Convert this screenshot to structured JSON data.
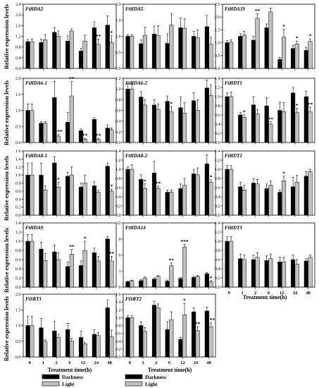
{
  "figure": {
    "ylabel": "Relative expression levels",
    "xlabel": "Treatment time(h)",
    "legend": [
      {
        "name": "Darkness",
        "color": "#000000"
      },
      {
        "name": "Light",
        "color": "#c0c0c0"
      }
    ]
  },
  "chart_data": [
    {
      "type": "bar",
      "title": "FtHDA2",
      "categories": [
        "0",
        "1",
        "2",
        "6",
        "12",
        "24",
        "48"
      ],
      "ylim": [
        0,
        2.4
      ],
      "yticks": [
        "0.0",
        "0.4",
        "0.8",
        "1.2",
        "1.6",
        "2.0",
        "2.4"
      ],
      "series": [
        {
          "name": "Darkness",
          "values": [
            1.0,
            0.97,
            1.35,
            1.02,
            0.65,
            1.52,
            1.62
          ]
        },
        {
          "name": "Light",
          "values": [
            1.0,
            1.07,
            1.2,
            1.4,
            1.02,
            0.9,
            0.97
          ]
        }
      ],
      "errors": [
        [
          0.08,
          0.12,
          0.18,
          0.2,
          0.1,
          0.22,
          0.35
        ],
        [
          0.1,
          0.2,
          0.2,
          0.08,
          0.22,
          0.2,
          0.25
        ]
      ],
      "sig": [
        [
          "",
          "",
          "",
          "",
          "",
          "",
          ""
        ],
        [
          "",
          "",
          "",
          "",
          "",
          "**",
          "*"
        ]
      ]
    },
    {
      "type": "bar",
      "title": "FtHDA5",
      "categories": [
        "0",
        "1",
        "2",
        "6",
        "12",
        "24",
        "48"
      ],
      "ylim": [
        0,
        2.0
      ],
      "yticks": [
        "0.0",
        "0.5",
        "1.0",
        "1.5",
        "2.0"
      ],
      "series": [
        {
          "name": "Darkness",
          "values": [
            1.0,
            0.77,
            1.07,
            0.78,
            1.27,
            1.0,
            1.3
          ]
        },
        {
          "name": "Light",
          "values": [
            1.0,
            1.03,
            1.03,
            1.35,
            1.25,
            0.95,
            0.75
          ]
        }
      ],
      "errors": [
        [
          0.05,
          0.12,
          0.25,
          0.3,
          0.3,
          0.15,
          0.35
        ],
        [
          0.05,
          0.25,
          0.3,
          0.35,
          0.3,
          0.25,
          0.22
        ]
      ],
      "sig": [
        [
          "",
          "",
          "",
          "",
          "",
          "",
          ""
        ],
        [
          "",
          "",
          "",
          "",
          "",
          "",
          ""
        ]
      ]
    },
    {
      "type": "bar",
      "title": "FtHDA19",
      "categories": [
        "0",
        "1",
        "2",
        "6",
        "12",
        "24",
        "48"
      ],
      "ylim": [
        0,
        2.5
      ],
      "yticks": [
        "0.0",
        "0.5",
        "1.0",
        "1.5",
        "2.0",
        "2.5"
      ],
      "series": [
        {
          "name": "Darkness",
          "values": [
            1.0,
            1.25,
            1.1,
            1.58,
            0.35,
            0.78,
            0.7
          ]
        },
        {
          "name": "Light",
          "values": [
            1.02,
            1.3,
            1.95,
            2.2,
            1.22,
            0.95,
            1.05
          ]
        }
      ],
      "errors": [
        [
          0.08,
          0.1,
          0.15,
          0.15,
          0.08,
          0.12,
          0.12
        ],
        [
          0.1,
          0.15,
          0.18,
          0.15,
          0.3,
          0.12,
          0.1
        ]
      ],
      "sig": [
        [
          "",
          "",
          "",
          "",
          "",
          "",
          ""
        ],
        [
          "",
          "",
          "**",
          "",
          "*",
          "*",
          "*"
        ]
      ]
    },
    {
      "type": "bar",
      "title": "FtHDA6-1",
      "categories": [
        "0",
        "1",
        "2",
        "6",
        "12",
        "24",
        "48"
      ],
      "ylim": [
        0,
        2.0
      ],
      "yticks": [
        "0.0",
        "0.5",
        "1.0",
        "1.5",
        "2.0"
      ],
      "series": [
        {
          "name": "Darkness",
          "values": [
            1.0,
            0.6,
            1.4,
            0.63,
            0.37,
            0.72,
            0.45
          ]
        },
        {
          "name": "Light",
          "values": [
            1.0,
            0.6,
            0.2,
            1.45,
            0.1,
            0.1,
            0.4
          ]
        }
      ],
      "errors": [
        [
          0.2,
          0.05,
          0.5,
          0.3,
          0.05,
          0.05,
          0.1
        ],
        [
          0.2,
          0.05,
          0.05,
          0.45,
          0.03,
          0.03,
          0.05
        ]
      ],
      "sig": [
        [
          "",
          "",
          "",
          "",
          "",
          "",
          ""
        ],
        [
          "",
          "",
          "***",
          "**",
          "**",
          "**",
          ""
        ]
      ]
    },
    {
      "type": "bar",
      "title": "FtHDA6-2",
      "categories": [
        "0",
        "1",
        "2",
        "6",
        "12",
        "24",
        "48"
      ],
      "ylim": [
        0,
        1.2
      ],
      "yticks": [
        "0.0",
        "0.2",
        "0.4",
        "0.6",
        "0.8",
        "1.0",
        "1.2"
      ],
      "series": [
        {
          "name": "Darkness",
          "values": [
            1.0,
            0.85,
            0.7,
            0.77,
            0.65,
            0.78,
            1.02
          ]
        },
        {
          "name": "Light",
          "values": [
            1.0,
            0.7,
            0.62,
            0.57,
            0.55,
            0.6,
            0.88
          ]
        }
      ],
      "errors": [
        [
          0.1,
          0.1,
          0.1,
          0.1,
          0.2,
          0.15,
          0.15
        ],
        [
          0.1,
          0.1,
          0.1,
          0.1,
          0.2,
          0.2,
          0.2
        ]
      ],
      "sig": [
        [
          "",
          "",
          "",
          "",
          "",
          "",
          ""
        ],
        [
          "",
          "",
          "",
          "*",
          "",
          "",
          ""
        ]
      ]
    },
    {
      "type": "bar",
      "title": "FtHDT1",
      "categories": [
        "0",
        "1",
        "2",
        "6",
        "12",
        "24",
        "48"
      ],
      "ylim": [
        0,
        1.4
      ],
      "yticks": [
        "0.0",
        "0.2",
        "0.4",
        "0.6",
        "0.8",
        "1.0",
        "1.2",
        "1.4"
      ],
      "series": [
        {
          "name": "Darkness",
          "values": [
            1.0,
            0.6,
            0.82,
            0.8,
            0.7,
            1.08,
            1.0
          ]
        },
        {
          "name": "Light",
          "values": [
            1.0,
            0.55,
            0.62,
            0.4,
            0.67,
            0.65,
            0.67
          ]
        }
      ],
      "errors": [
        [
          0.08,
          0.05,
          0.18,
          0.18,
          0.18,
          0.12,
          0.12
        ],
        [
          0.1,
          0.05,
          0.1,
          0.05,
          0.2,
          0.1,
          0.1
        ]
      ],
      "sig": [
        [
          "",
          "",
          "",
          "",
          "",
          "",
          ""
        ],
        [
          "",
          "*",
          "",
          "**",
          "",
          "*",
          "**"
        ]
      ]
    },
    {
      "type": "bar",
      "title": "FtHDA8-1",
      "categories": [
        "0",
        "1",
        "2",
        "6",
        "12",
        "24",
        "48"
      ],
      "ylim": [
        0,
        1.6
      ],
      "yticks": [
        "0.0",
        "0.2",
        "0.4",
        "0.6",
        "0.8",
        "1.0",
        "1.2",
        "1.4",
        "1.6"
      ],
      "series": [
        {
          "name": "Darkness",
          "values": [
            1.0,
            1.0,
            1.3,
            0.97,
            0.7,
            0.73,
            1.22
          ]
        },
        {
          "name": "Light",
          "values": [
            1.0,
            0.63,
            0.7,
            1.0,
            0.8,
            0.57,
            0.6
          ]
        }
      ],
      "errors": [
        [
          0.3,
          0.3,
          0.15,
          0.1,
          0.1,
          0.1,
          0.08
        ],
        [
          0.3,
          0.1,
          0.12,
          0.2,
          0.2,
          0.05,
          0.05
        ]
      ],
      "sig": [
        [
          "",
          "",
          "",
          "",
          "",
          "",
          ""
        ],
        [
          "",
          "",
          "*",
          "",
          "",
          "",
          "*"
        ]
      ]
    },
    {
      "type": "bar",
      "title": "FtHDA8-2",
      "categories": [
        "0",
        "1",
        "2",
        "6",
        "12",
        "24",
        "48"
      ],
      "ylim": [
        0,
        1.4
      ],
      "yticks": [
        "0.0",
        "0.2",
        "0.4",
        "0.6",
        "0.8",
        "1.0",
        "1.2",
        "1.4"
      ],
      "series": [
        {
          "name": "Darkness",
          "values": [
            1.0,
            0.78,
            0.92,
            0.5,
            0.58,
            0.9,
            1.12
          ]
        },
        {
          "name": "Light",
          "values": [
            1.0,
            0.58,
            0.58,
            0.5,
            0.65,
            0.88,
            0.72
          ]
        }
      ],
      "errors": [
        [
          0.05,
          0.1,
          0.25,
          0.05,
          0.1,
          0.1,
          0.2
        ],
        [
          0.1,
          0.1,
          0.05,
          0.05,
          0.15,
          0.15,
          0.05
        ]
      ],
      "sig": [
        [
          "",
          "",
          "",
          "",
          "",
          "",
          ""
        ],
        [
          "",
          "*",
          "**",
          "",
          "",
          "",
          "*"
        ]
      ]
    },
    {
      "type": "bar",
      "title": "FtHDT2",
      "categories": [
        "0",
        "1",
        "2",
        "6",
        "12",
        "24",
        "48"
      ],
      "ylim": [
        0,
        1.4
      ],
      "yticks": [
        "0.0",
        "0.2",
        "0.4",
        "0.6",
        "0.8",
        "1.0",
        "1.2",
        "1.4"
      ],
      "series": [
        {
          "name": "Darkness",
          "values": [
            1.0,
            0.62,
            0.7,
            0.58,
            0.5,
            0.62,
            0.85
          ]
        },
        {
          "name": "Light",
          "values": [
            1.0,
            0.55,
            0.68,
            0.65,
            0.75,
            0.72,
            0.95
          ]
        }
      ],
      "errors": [
        [
          0.08,
          0.1,
          0.1,
          0.1,
          0.05,
          0.2,
          0.1
        ],
        [
          0.08,
          0.1,
          0.1,
          0.1,
          0.1,
          0.15,
          0.05
        ]
      ],
      "sig": [
        [
          "",
          "",
          "",
          "",
          "",
          "",
          ""
        ],
        [
          "",
          "",
          "",
          "",
          "*",
          "",
          ""
        ]
      ]
    },
    {
      "type": "bar",
      "title": "FtHDA9",
      "categories": [
        "0",
        "1",
        "2",
        "6",
        "12",
        "24",
        "48"
      ],
      "ylim": [
        0,
        1.4
      ],
      "yticks": [
        "0.0",
        "0.2",
        "0.4",
        "0.6",
        "0.8",
        "1.0",
        "1.2",
        "1.4"
      ],
      "series": [
        {
          "name": "Darkness",
          "values": [
            1.0,
            0.83,
            0.77,
            0.45,
            0.47,
            0.75,
            1.05
          ]
        },
        {
          "name": "Light",
          "values": [
            1.0,
            0.58,
            0.6,
            0.72,
            0.8,
            0.57,
            0.57
          ]
        }
      ],
      "errors": [
        [
          0.15,
          0.15,
          0.15,
          0.1,
          0.1,
          0.1,
          0.05
        ],
        [
          0.15,
          0.15,
          0.15,
          0.1,
          0.2,
          0.1,
          0.1
        ]
      ],
      "sig": [
        [
          "",
          "",
          "",
          "",
          "",
          "",
          ""
        ],
        [
          "",
          "",
          "",
          "**",
          "*",
          "",
          "**"
        ]
      ]
    },
    {
      "type": "bar",
      "title": "FtHDA14",
      "categories": [
        "0",
        "1",
        "2",
        "6",
        "12",
        "24",
        "48"
      ],
      "ylim": [
        0,
        12
      ],
      "yticks": [
        "0",
        "3",
        "6",
        "9",
        "12"
      ],
      "series": [
        {
          "name": "Darkness",
          "values": [
            1.0,
            1.2,
            1.5,
            1.1,
            1.6,
            1.8,
            2.5
          ]
        },
        {
          "name": "Light",
          "values": [
            1.2,
            1.7,
            2.0,
            4.0,
            7.5,
            2.0,
            1.0
          ]
        }
      ],
      "errors": [
        [
          0.1,
          0.2,
          0.2,
          0.2,
          0.2,
          0.2,
          0.2
        ],
        [
          0.1,
          0.2,
          0.2,
          0.5,
          0.5,
          0.2,
          0.2
        ]
      ],
      "sig": [
        [
          "",
          "",
          "",
          "",
          "",
          "",
          ""
        ],
        [
          "",
          "",
          "",
          "**",
          "***",
          "",
          "*"
        ]
      ]
    },
    {
      "type": "bar",
      "title": "FtHDT3",
      "categories": [
        "0",
        "1",
        "2",
        "6",
        "12",
        "24",
        "48"
      ],
      "ylim": [
        0,
        1.4
      ],
      "yticks": [
        "0.0",
        "0.2",
        "0.4",
        "0.6",
        "0.8",
        "1.0",
        "1.2",
        "1.4"
      ],
      "series": [
        {
          "name": "Darkness",
          "values": [
            1.0,
            0.62,
            0.6,
            0.58,
            0.55,
            0.6,
            0.57
          ]
        },
        {
          "name": "Light",
          "values": [
            1.0,
            0.6,
            0.65,
            0.62,
            0.55,
            0.5,
            0.65
          ]
        }
      ],
      "errors": [
        [
          0.1,
          0.1,
          0.1,
          0.1,
          0.1,
          0.1,
          0.05
        ],
        [
          0.1,
          0.1,
          0.1,
          0.1,
          0.1,
          0.1,
          0.05
        ]
      ],
      "sig": [
        [
          "",
          "",
          "",
          "",
          "",
          "",
          ""
        ],
        [
          "",
          "",
          "",
          "",
          "",
          "",
          ""
        ]
      ]
    },
    {
      "type": "bar",
      "title": "FtSRT1",
      "categories": [
        "0",
        "1",
        "2",
        "6",
        "12",
        "24",
        "48"
      ],
      "ylim": [
        0,
        2.0
      ],
      "yticks": [
        "0.0",
        "0.5",
        "1.0",
        "1.5",
        "2.0"
      ],
      "series": [
        {
          "name": "Darkness",
          "values": [
            1.0,
            0.93,
            0.83,
            0.87,
            0.62,
            0.72,
            1.57
          ]
        },
        {
          "name": "Light",
          "values": [
            1.0,
            0.5,
            0.62,
            0.5,
            0.42,
            0.68,
            0.65
          ]
        }
      ],
      "errors": [
        [
          0.3,
          0.3,
          0.3,
          0.2,
          0.2,
          0.15,
          0.25
        ],
        [
          0.3,
          0.05,
          0.1,
          0.1,
          0.05,
          0.1,
          0.2
        ]
      ],
      "sig": [
        [
          "",
          "",
          "",
          "",
          "",
          "",
          ""
        ],
        [
          "",
          "",
          "",
          "",
          "",
          "",
          ""
        ]
      ]
    },
    {
      "type": "bar",
      "title": "FtSRT2",
      "categories": [
        "0",
        "1",
        "2",
        "6",
        "12",
        "24",
        "48"
      ],
      "ylim": [
        0,
        1.6
      ],
      "yticks": [
        "0.0",
        "0.2",
        "0.4",
        "0.6",
        "0.8",
        "1.0",
        "1.2",
        "1.4",
        "1.6"
      ],
      "series": [
        {
          "name": "Darkness",
          "values": [
            1.0,
            0.8,
            1.32,
            0.7,
            0.45,
            1.15,
            1.17
          ]
        },
        {
          "name": "Light",
          "values": [
            1.0,
            0.65,
            1.25,
            0.95,
            1.07,
            0.67,
            0.77
          ]
        }
      ],
      "errors": [
        [
          0.05,
          0.1,
          0.1,
          0.2,
          0.05,
          0.1,
          0.1
        ],
        [
          0.05,
          0.1,
          0.1,
          0.2,
          0.3,
          0.1,
          0.1
        ]
      ],
      "sig": [
        [
          "",
          "",
          "",
          "",
          "",
          "",
          ""
        ],
        [
          "",
          "",
          "",
          "",
          "*",
          "**",
          "***"
        ]
      ]
    }
  ]
}
